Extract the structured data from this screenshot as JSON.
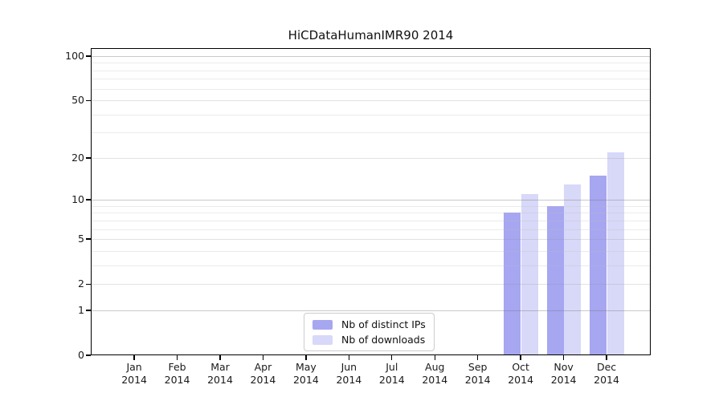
{
  "chart_data": {
    "type": "bar",
    "title": "HiCDataHumanIMR90 2014",
    "x_tick_year": "2014",
    "categories": [
      "Jan",
      "Feb",
      "Mar",
      "Apr",
      "May",
      "Jun",
      "Jul",
      "Aug",
      "Sep",
      "Oct",
      "Nov",
      "Dec"
    ],
    "series": [
      {
        "name": "Nb of distinct IPs",
        "color": "#a6a6f1",
        "values": [
          null,
          null,
          null,
          null,
          null,
          null,
          null,
          null,
          null,
          8,
          9,
          15
        ]
      },
      {
        "name": "Nb of downloads",
        "color": "#d8d8f8",
        "values": [
          null,
          null,
          null,
          null,
          null,
          null,
          null,
          null,
          null,
          11,
          13,
          22
        ]
      }
    ],
    "y_scale": "log1p",
    "ylim": [
      0,
      111
    ],
    "y_ticks": [
      100,
      50,
      20,
      10,
      5,
      2,
      1,
      0
    ],
    "y_gridlines_decade": [
      100,
      10,
      1
    ],
    "y_gridlines_major": [
      50,
      20,
      5,
      2
    ],
    "y_gridlines_minor": [
      90,
      80,
      70,
      60,
      40,
      30,
      9,
      8,
      7,
      6,
      4,
      3
    ],
    "grid": true,
    "legend_position": "bottom-center"
  },
  "colors": {
    "axis": "#000000",
    "text": "#1a1a1a",
    "background": "#ffffff",
    "legend_border": "#cccccc"
  }
}
